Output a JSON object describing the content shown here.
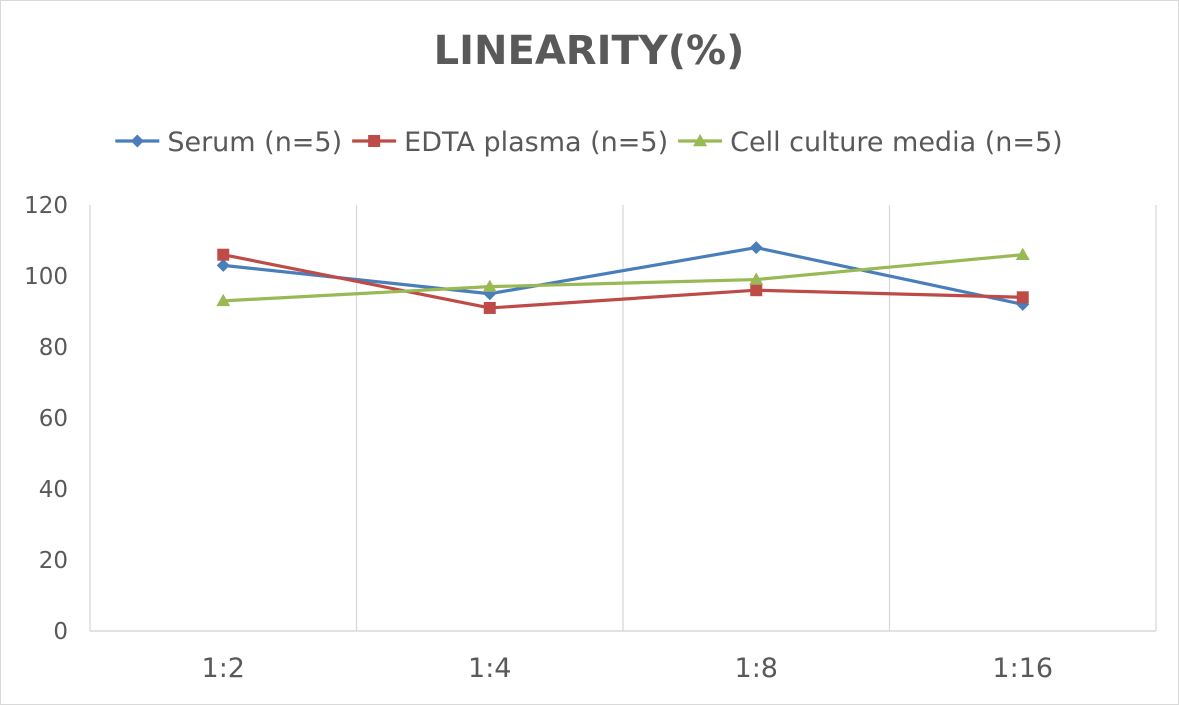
{
  "chart_data": {
    "type": "line",
    "title": "LINEARITY(%)",
    "xlabel": "",
    "ylabel": "",
    "categories": [
      "1:2",
      "1:4",
      "1:8",
      "1:16"
    ],
    "ylim": [
      0,
      120
    ],
    "yticks": [
      0,
      20,
      40,
      60,
      80,
      100,
      120
    ],
    "grid": "vertical",
    "legend_position": "top",
    "series": [
      {
        "name": "Serum (n=5)",
        "values": [
          103,
          95,
          108,
          92
        ],
        "color": "#4a7ebb",
        "marker": "diamond"
      },
      {
        "name": "EDTA plasma (n=5)",
        "values": [
          106,
          91,
          96,
          94
        ],
        "color": "#be4b48",
        "marker": "square"
      },
      {
        "name": "Cell culture media (n=5)",
        "values": [
          93,
          97,
          99,
          106
        ],
        "color": "#98b954",
        "marker": "triangle"
      }
    ]
  }
}
